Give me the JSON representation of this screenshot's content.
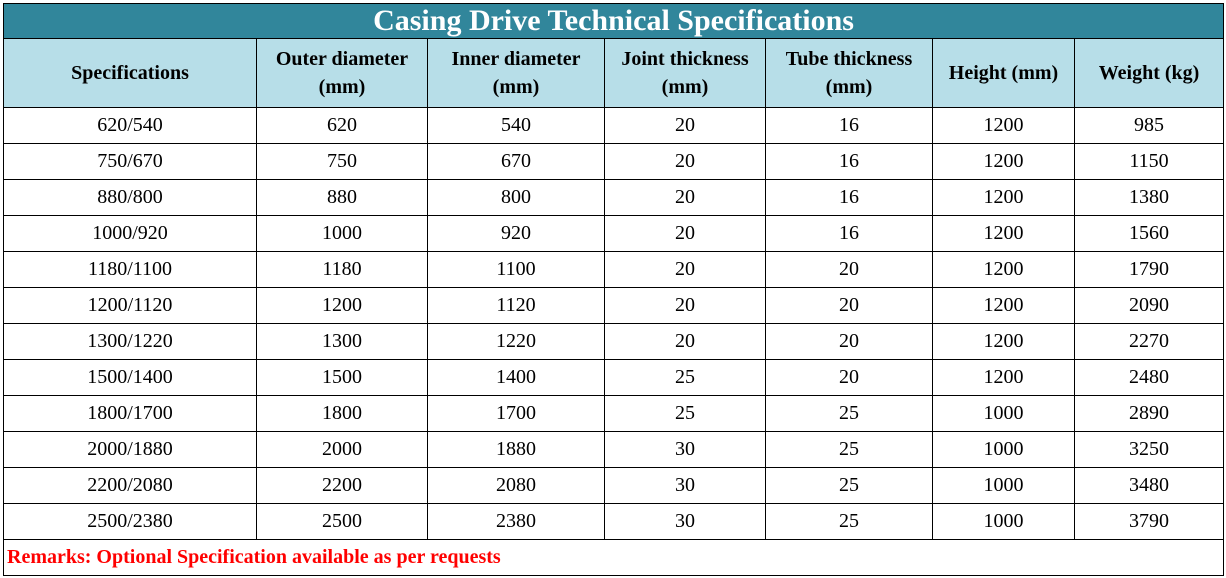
{
  "table": {
    "title": "Casing Drive Technical Specifications",
    "header_line1": [
      "Specifications",
      "Outer diameter",
      "Inner diameter",
      "Joint thickness",
      "Tube thickness",
      "Height (mm)",
      "Weight (kg)"
    ],
    "header_line2": [
      "",
      "(mm)",
      "(mm)",
      "(mm)",
      "(mm)",
      "",
      ""
    ],
    "rows": [
      [
        "620/540",
        "620",
        "540",
        "20",
        "16",
        "1200",
        "985"
      ],
      [
        "750/670",
        "750",
        "670",
        "20",
        "16",
        "1200",
        "1150"
      ],
      [
        "880/800",
        "880",
        "800",
        "20",
        "16",
        "1200",
        "1380"
      ],
      [
        "1000/920",
        "1000",
        "920",
        "20",
        "16",
        "1200",
        "1560"
      ],
      [
        "1180/1100",
        "1180",
        "1100",
        "20",
        "20",
        "1200",
        "1790"
      ],
      [
        "1200/1120",
        "1200",
        "1120",
        "20",
        "20",
        "1200",
        "2090"
      ],
      [
        "1300/1220",
        "1300",
        "1220",
        "20",
        "20",
        "1200",
        "2270"
      ],
      [
        "1500/1400",
        "1500",
        "1400",
        "25",
        "20",
        "1200",
        "2480"
      ],
      [
        "1800/1700",
        "1800",
        "1700",
        "25",
        "25",
        "1000",
        "2890"
      ],
      [
        "2000/1880",
        "2000",
        "1880",
        "30",
        "25",
        "1000",
        "3250"
      ],
      [
        "2200/2080",
        "2200",
        "2080",
        "30",
        "25",
        "1000",
        "3480"
      ],
      [
        "2500/2380",
        "2500",
        "2380",
        "30",
        "25",
        "1000",
        "3790"
      ]
    ],
    "remarks": "Remarks: Optional Specification available as per requests"
  },
  "colors": {
    "title_background": "#31869b",
    "title_text": "#ffffff",
    "header_background": "#b7dee8",
    "remarks_text": "#ff0000"
  }
}
